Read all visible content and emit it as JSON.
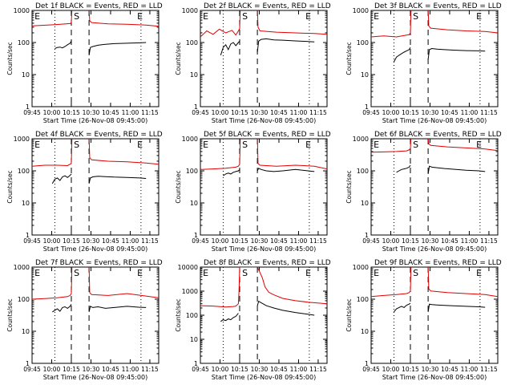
{
  "colors": {
    "events": "#000000",
    "lld": "#e00000",
    "axis": "#000000",
    "background": "#ffffff"
  },
  "chart_data": [
    {
      "type": "line",
      "title": "Det 1f BLACK = Events, RED = LLD",
      "xlabel": "Start Time (26-Nov-08 09:45:00)",
      "ylabel": "Counts/sec",
      "xticks": [
        "09:45",
        "10:00",
        "10:15",
        "10:30",
        "10:45",
        "11:00",
        "11:15"
      ],
      "yticks": [
        "1",
        "10",
        "100",
        "1000"
      ],
      "yscale": "log",
      "ylim": [
        1,
        1000
      ],
      "xlim": [
        0,
        100
      ],
      "markers": [
        "E",
        "S",
        "E"
      ],
      "series": [
        {
          "color": "red",
          "x": [
            0,
            18,
            30,
            31,
            31.5,
            34,
            43,
            45,
            45.5,
            47,
            60,
            75,
            90,
            100
          ],
          "y": [
            330,
            360,
            390,
            420,
            1200,
            1200,
            1200,
            1200,
            480,
            420,
            380,
            370,
            350,
            320
          ]
        },
        {
          "color": "black",
          "x": [
            18,
            20,
            22,
            24,
            26,
            28,
            30,
            31
          ],
          "y": [
            65,
            70,
            72,
            68,
            75,
            85,
            95,
            110
          ]
        },
        {
          "color": "black",
          "x": [
            45,
            46,
            48,
            52,
            58,
            65,
            75,
            85,
            90
          ],
          "y": [
            40,
            70,
            75,
            82,
            88,
            92,
            95,
            98,
            100
          ]
        }
      ]
    },
    {
      "type": "line",
      "title": "Det 2f BLACK = Events, RED = LLD",
      "xlabel": "Start Time (26-Nov-08 09:45:00)",
      "ylabel": "Counts/sec",
      "xticks": [
        "09:45",
        "10:00",
        "10:15",
        "10:30",
        "10:45",
        "11:00",
        "11:15"
      ],
      "yticks": [
        "1",
        "10",
        "100",
        "1000"
      ],
      "yscale": "log",
      "ylim": [
        1,
        1000
      ],
      "xlim": [
        0,
        100
      ],
      "markers": [
        "E",
        "S",
        "E"
      ],
      "series": [
        {
          "color": "red",
          "x": [
            0,
            5,
            10,
            15,
            20,
            25,
            28,
            30,
            31,
            31.5,
            34,
            43,
            45,
            45.5,
            47,
            60,
            75,
            90,
            100
          ],
          "y": [
            150,
            230,
            180,
            260,
            200,
            240,
            170,
            230,
            270,
            1200,
            1200,
            1200,
            1200,
            300,
            230,
            210,
            200,
            190,
            180
          ]
        },
        {
          "color": "black",
          "x": [
            16,
            18,
            20,
            22,
            24,
            26,
            28,
            30,
            31
          ],
          "y": [
            40,
            70,
            85,
            60,
            90,
            100,
            80,
            100,
            110
          ]
        },
        {
          "color": "black",
          "x": [
            45,
            46,
            48,
            52,
            58,
            65,
            75,
            85,
            90
          ],
          "y": [
            50,
            110,
            125,
            130,
            120,
            118,
            112,
            108,
            105
          ]
        }
      ]
    },
    {
      "type": "line",
      "title": "Det 3f BLACK = Events, RED = LLD",
      "xlabel": "Start Time (26-Nov-08 09:45:00)",
      "ylabel": "Counts/sec",
      "xticks": [
        "09:45",
        "10:00",
        "10:15",
        "10:30",
        "10:45",
        "11:00",
        "11:15"
      ],
      "yticks": [
        "1",
        "10",
        "100",
        "1000"
      ],
      "yscale": "log",
      "ylim": [
        1,
        1000
      ],
      "xlim": [
        0,
        100
      ],
      "markers": [
        "E",
        "S",
        "E"
      ],
      "series": [
        {
          "color": "red",
          "x": [
            0,
            10,
            20,
            28,
            30,
            31,
            31.5,
            34,
            43,
            45,
            45.5,
            47,
            60,
            75,
            90,
            100
          ],
          "y": [
            150,
            160,
            150,
            170,
            175,
            200,
            1200,
            1200,
            1200,
            1200,
            330,
            280,
            250,
            230,
            220,
            200
          ]
        },
        {
          "color": "black",
          "x": [
            18,
            20,
            22,
            24,
            26,
            28,
            30,
            31
          ],
          "y": [
            25,
            35,
            40,
            45,
            50,
            55,
            60,
            70
          ]
        },
        {
          "color": "black",
          "x": [
            45,
            46,
            48,
            52,
            58,
            65,
            75,
            85,
            90
          ],
          "y": [
            30,
            60,
            65,
            62,
            60,
            58,
            56,
            55,
            54
          ]
        }
      ]
    },
    {
      "type": "line",
      "title": "Det 4f BLACK = Events, RED = LLD",
      "xlabel": "Start Time (26-Nov-08 09:45:00)",
      "ylabel": "Counts/sec",
      "xticks": [
        "09:45",
        "10:00",
        "10:15",
        "10:30",
        "10:45",
        "11:00",
        "11:15"
      ],
      "yticks": [
        "1",
        "10",
        "100",
        "1000"
      ],
      "yscale": "log",
      "ylim": [
        1,
        1000
      ],
      "xlim": [
        0,
        100
      ],
      "markers": [
        "E",
        "S",
        "E"
      ],
      "series": [
        {
          "color": "red",
          "x": [
            0,
            10,
            20,
            28,
            30,
            31,
            31.5,
            34,
            43,
            45,
            45.5,
            47,
            60,
            75,
            90,
            100
          ],
          "y": [
            140,
            150,
            150,
            145,
            160,
            170,
            1200,
            1200,
            1200,
            1200,
            260,
            220,
            200,
            190,
            175,
            160
          ]
        },
        {
          "color": "black",
          "x": [
            16,
            18,
            20,
            22,
            24,
            26,
            28,
            30,
            31
          ],
          "y": [
            40,
            55,
            60,
            50,
            65,
            70,
            62,
            72,
            80
          ]
        },
        {
          "color": "black",
          "x": [
            45,
            46,
            48,
            52,
            58,
            65,
            75,
            85,
            90
          ],
          "y": [
            40,
            60,
            65,
            68,
            66,
            64,
            62,
            60,
            58
          ]
        }
      ]
    },
    {
      "type": "line",
      "title": "Det 5f BLACK = Events, RED = LLD",
      "xlabel": "Start Time (26-Nov-08 09:45:00)",
      "ylabel": "Counts/sec",
      "xticks": [
        "09:45",
        "10:00",
        "10:15",
        "10:30",
        "10:45",
        "11:00",
        "11:15"
      ],
      "yticks": [
        "1",
        "10",
        "100",
        "1000"
      ],
      "yscale": "log",
      "ylim": [
        1,
        1000
      ],
      "xlim": [
        0,
        100
      ],
      "markers": [
        "E",
        "S",
        "E"
      ],
      "series": [
        {
          "color": "red",
          "x": [
            0,
            10,
            20,
            28,
            30,
            31,
            31.5,
            34,
            43,
            45,
            45.5,
            47,
            60,
            75,
            90,
            100
          ],
          "y": [
            110,
            115,
            120,
            130,
            140,
            160,
            1200,
            1200,
            1200,
            1200,
            170,
            150,
            140,
            150,
            140,
            115
          ]
        },
        {
          "color": "black",
          "x": [
            18,
            20,
            22,
            24,
            26,
            28,
            30,
            31
          ],
          "y": [
            70,
            80,
            85,
            80,
            90,
            95,
            100,
            110
          ]
        },
        {
          "color": "black",
          "x": [
            45,
            46,
            48,
            52,
            58,
            65,
            75,
            85,
            90
          ],
          "y": [
            100,
            120,
            110,
            100,
            95,
            100,
            110,
            100,
            95
          ]
        }
      ]
    },
    {
      "type": "line",
      "title": "Det 6f BLACK = Events, RED = LLD",
      "xlabel": "Start Time (26-Nov-08 09:45:00)",
      "ylabel": "Counts/sec",
      "xticks": [
        "09:45",
        "10:00",
        "10:15",
        "10:30",
        "10:45",
        "11:00",
        "11:15"
      ],
      "yticks": [
        "1",
        "10",
        "100",
        "1000"
      ],
      "yscale": "log",
      "ylim": [
        1,
        1000
      ],
      "xlim": [
        0,
        100
      ],
      "markers": [
        "E",
        "S",
        "E"
      ],
      "series": [
        {
          "color": "red",
          "x": [
            0,
            10,
            20,
            28,
            30,
            31,
            31.5,
            34,
            43,
            45,
            45.5,
            47,
            60,
            75,
            90,
            100
          ],
          "y": [
            380,
            390,
            400,
            420,
            450,
            500,
            1200,
            1200,
            1200,
            1200,
            700,
            620,
            560,
            520,
            480,
            430
          ]
        },
        {
          "color": "black",
          "x": [
            20,
            22,
            24,
            26,
            28,
            30,
            31
          ],
          "y": [
            90,
            100,
            110,
            115,
            120,
            130,
            150
          ]
        },
        {
          "color": "black",
          "x": [
            45,
            46,
            48,
            52,
            58,
            65,
            75,
            85,
            90
          ],
          "y": [
            80,
            140,
            130,
            125,
            118,
            112,
            105,
            100,
            95
          ]
        }
      ]
    },
    {
      "type": "line",
      "title": "Det 7f BLACK = Events, RED = LLD",
      "xlabel": "Start Time (26-Nov-08 09:45:00)",
      "ylabel": "Counts/sec",
      "xticks": [
        "09:45",
        "10:00",
        "10:15",
        "10:30",
        "10:45",
        "11:00",
        "11:15"
      ],
      "yticks": [
        "1",
        "10",
        "100",
        "1000"
      ],
      "yscale": "log",
      "ylim": [
        1,
        1000
      ],
      "xlim": [
        0,
        100
      ],
      "markers": [
        "E",
        "S",
        "E"
      ],
      "series": [
        {
          "color": "red",
          "x": [
            0,
            10,
            20,
            28,
            30,
            31,
            31.5,
            34,
            43,
            45,
            45.5,
            47,
            60,
            75,
            90,
            100
          ],
          "y": [
            100,
            105,
            110,
            120,
            130,
            150,
            1200,
            1200,
            1200,
            1200,
            160,
            140,
            130,
            150,
            125,
            110
          ]
        },
        {
          "color": "black",
          "x": [
            16,
            18,
            20,
            22,
            24,
            26,
            28,
            30,
            31
          ],
          "y": [
            40,
            45,
            50,
            42,
            55,
            58,
            52,
            60,
            70
          ]
        },
        {
          "color": "black",
          "x": [
            45,
            46,
            48,
            52,
            58,
            65,
            75,
            85,
            90
          ],
          "y": [
            40,
            60,
            55,
            58,
            52,
            55,
            60,
            56,
            55
          ]
        }
      ]
    },
    {
      "type": "line",
      "title": "Det 8f BLACK = Events, RED = LLD",
      "xlabel": "Start Time (26-Nov-08 09:45:00)",
      "ylabel": "Counts/sec",
      "xticks": [
        "09:45",
        "10:00",
        "10:15",
        "10:30",
        "10:45",
        "11:00",
        "11:15"
      ],
      "yticks": [
        "1",
        "10",
        "100",
        "1000",
        "10000"
      ],
      "yscale": "log",
      "ylim": [
        1,
        10000
      ],
      "xlim": [
        0,
        100
      ],
      "markers": [
        "E",
        "S",
        "E"
      ],
      "series": [
        {
          "color": "red",
          "x": [
            0,
            10,
            20,
            26,
            28,
            30,
            30.5,
            31,
            43,
            45,
            47,
            49,
            51,
            54,
            58,
            65,
            75,
            85,
            100
          ],
          "y": [
            250,
            240,
            220,
            230,
            240,
            300,
            1000,
            10000,
            10000,
            10000,
            6000,
            3500,
            1500,
            900,
            700,
            500,
            400,
            350,
            300
          ]
        },
        {
          "color": "black",
          "x": [
            16,
            18,
            20,
            22,
            24,
            26,
            28,
            30
          ],
          "y": [
            55,
            65,
            60,
            70,
            65,
            80,
            90,
            120
          ]
        },
        {
          "color": "black",
          "x": [
            45,
            46,
            48,
            52,
            58,
            65,
            75,
            85,
            90
          ],
          "y": [
            250,
            380,
            330,
            250,
            200,
            160,
            130,
            110,
            100
          ]
        }
      ]
    },
    {
      "type": "line",
      "title": "Det 9f BLACK = Events, RED = LLD",
      "xlabel": "Start Time (26-Nov-08 09:45:00)",
      "ylabel": "Counts/sec",
      "xticks": [
        "09:45",
        "10:00",
        "10:15",
        "10:30",
        "10:45",
        "11:00",
        "11:15"
      ],
      "yticks": [
        "1",
        "10",
        "100",
        "1000"
      ],
      "yscale": "log",
      "ylim": [
        1,
        1000
      ],
      "xlim": [
        0,
        100
      ],
      "markers": [
        "E",
        "S",
        "E"
      ],
      "series": [
        {
          "color": "red",
          "x": [
            0,
            10,
            20,
            28,
            30,
            31,
            31.5,
            34,
            43,
            45,
            45.5,
            47,
            60,
            75,
            90,
            100
          ],
          "y": [
            120,
            130,
            140,
            150,
            160,
            180,
            1200,
            1200,
            1200,
            1200,
            210,
            180,
            160,
            150,
            140,
            120
          ]
        },
        {
          "color": "black",
          "x": [
            18,
            20,
            22,
            24,
            26,
            28,
            30,
            31
          ],
          "y": [
            40,
            50,
            55,
            60,
            55,
            65,
            70,
            75
          ]
        },
        {
          "color": "black",
          "x": [
            45,
            46,
            48,
            52,
            58,
            65,
            75,
            85,
            90
          ],
          "y": [
            40,
            70,
            68,
            66,
            64,
            62,
            60,
            58,
            56
          ]
        }
      ]
    }
  ]
}
